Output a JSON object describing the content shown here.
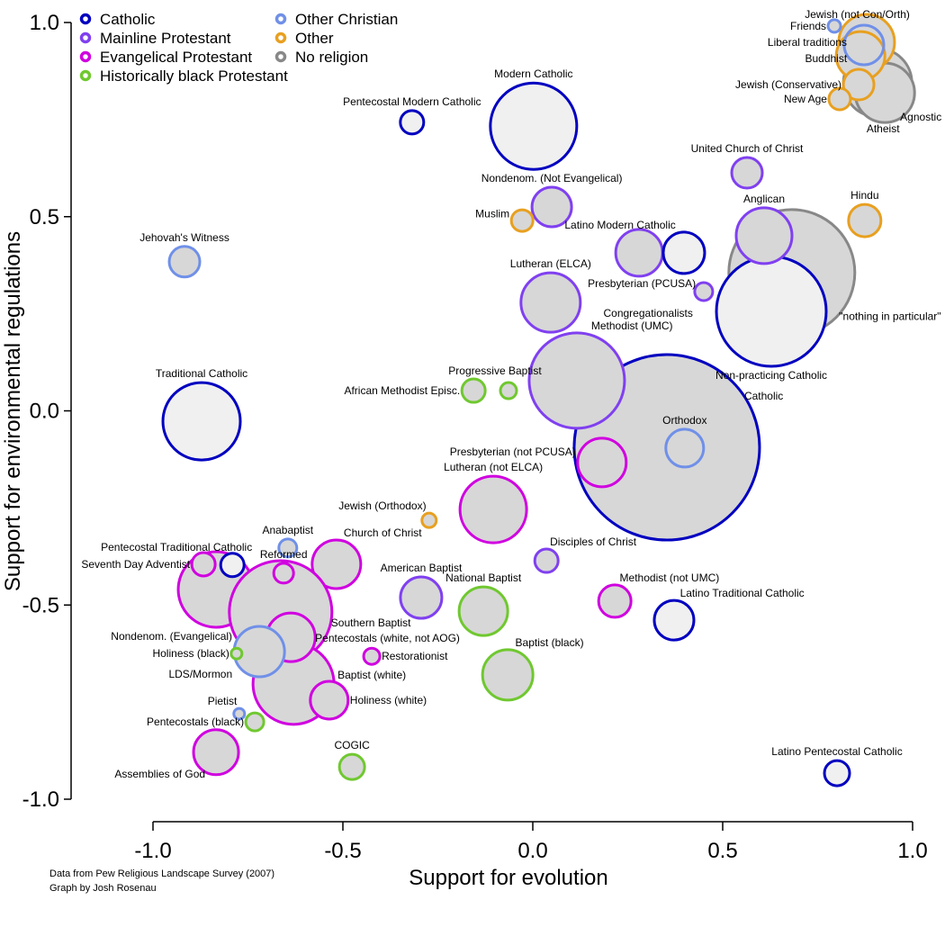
{
  "chart_data": {
    "type": "scatter",
    "subtype": "bubble",
    "title": "",
    "xlabel": "Support for evolution",
    "ylabel": "Support for environmental regulations",
    "xlim": [
      -1.0,
      1.0
    ],
    "ylim": [
      -1.0,
      1.0
    ],
    "x_ticks": [
      "-1.0",
      "-0.5",
      "0.0",
      "0.5",
      "1.0"
    ],
    "y_ticks": [
      "1.0",
      "0.5",
      "0.0",
      "-0.5",
      "-1.0"
    ],
    "grid": false,
    "legend_position": "top-left",
    "credits": [
      "Data from Pew Religious Landscape Survey (2007)",
      "Graph by Josh Rosenau"
    ],
    "size_note": "bubble size is relative group size (arbitrary units)",
    "categories": [
      {
        "key": "catholic",
        "name": "Catholic",
        "color": "#0000c0"
      },
      {
        "key": "mainline",
        "name": "Mainline Protestant",
        "color": "#8040f0"
      },
      {
        "key": "evangelical",
        "name": "Evangelical Protestant",
        "color": "#d000e0"
      },
      {
        "key": "black",
        "name": "Historically black Protestant",
        "color": "#70c830"
      },
      {
        "key": "otherchristian",
        "name": "Other Christian",
        "color": "#7090e8"
      },
      {
        "key": "other",
        "name": "Other",
        "color": "#e8a020"
      },
      {
        "key": "none",
        "name": "No religion",
        "color": "#888888"
      }
    ],
    "series": [
      {
        "name": "\"nothing in particular\"",
        "category": "none",
        "x": 0.682,
        "y": 0.356,
        "size": 70,
        "fill": "#d7d7d7",
        "label_pos": "right-below"
      },
      {
        "name": "Catholic",
        "category": "catholic",
        "x": 0.353,
        "y": -0.094,
        "size": 103,
        "fill": "#d7d7d7",
        "label_pos": "catholic"
      },
      {
        "name": "Methodist (UMC)",
        "category": "mainline",
        "x": 0.116,
        "y": 0.078,
        "size": 53,
        "fill": "#d7d7d7",
        "label_pos": "top-right"
      },
      {
        "name": "Orthodox",
        "category": "otherchristian",
        "x": 0.4,
        "y": -0.096,
        "size": 21,
        "fill": "#d7d7d7",
        "label_pos": "top"
      },
      {
        "name": "Presbyterian (not PCUSA)",
        "category": "evangelical",
        "x": 0.182,
        "y": -0.133,
        "size": 27,
        "fill": "#d7d7d7",
        "label_pos": "left-top"
      },
      {
        "name": "Modern Catholic",
        "category": "catholic",
        "x": 0.002,
        "y": 0.733,
        "size": 48,
        "fill": "#f0f0f0",
        "label_pos": "top"
      },
      {
        "name": "Pentecostal Modern Catholic",
        "category": "catholic",
        "x": -0.318,
        "y": 0.743,
        "size": 13,
        "fill": "#f0f0f0",
        "label_pos": "top"
      },
      {
        "name": "Traditional Catholic",
        "category": "catholic",
        "x": -0.872,
        "y": -0.027,
        "size": 43,
        "fill": "#f0f0f0",
        "label_pos": "top"
      },
      {
        "name": "Lutheran (ELCA)",
        "category": "mainline",
        "x": 0.047,
        "y": 0.279,
        "size": 33,
        "fill": "#d7d7d7",
        "label_pos": "top"
      },
      {
        "name": "Presbyterian (PCUSA)",
        "category": "mainline",
        "x": 0.28,
        "y": 0.407,
        "size": 26,
        "fill": "#d7d7d7",
        "label_pos": "pcusa"
      },
      {
        "name": "Latino Modern Catholic",
        "category": "catholic",
        "x": 0.398,
        "y": 0.407,
        "size": 23,
        "fill": "#f0f0f0",
        "label_pos": "top-left"
      },
      {
        "name": "Congregationalists",
        "category": "mainline",
        "x": 0.45,
        "y": 0.307,
        "size": 10,
        "fill": "#d7d7d7",
        "label_pos": "left-below"
      },
      {
        "name": "Non-practicing Catholic",
        "category": "catholic",
        "x": 0.628,
        "y": 0.256,
        "size": 61,
        "fill": "#f0f0f0",
        "label_pos": "bottom"
      },
      {
        "name": "Anglican",
        "category": "mainline",
        "x": 0.609,
        "y": 0.451,
        "size": 31,
        "fill": "#d7d7d7",
        "label_pos": "top"
      },
      {
        "name": "United Church of Christ",
        "category": "mainline",
        "x": 0.564,
        "y": 0.613,
        "size": 17,
        "fill": "#d7d7d7",
        "label_pos": "top"
      },
      {
        "name": "Nondenom. (Not Evangelical)",
        "category": "mainline",
        "x": 0.05,
        "y": 0.525,
        "size": 22,
        "fill": "#d7d7d7",
        "label_pos": "top"
      },
      {
        "name": "Muslim",
        "category": "other",
        "x": -0.028,
        "y": 0.49,
        "size": 12,
        "fill": "#d7d7d7",
        "label_pos": "left-top"
      },
      {
        "name": "Hindu",
        "category": "other",
        "x": 0.874,
        "y": 0.49,
        "size": 18,
        "fill": "#d7d7d7",
        "label_pos": "top"
      },
      {
        "name": "Jehovah's Witness",
        "category": "otherchristian",
        "x": -0.917,
        "y": 0.384,
        "size": 17,
        "fill": "#d7d7d7",
        "label_pos": "top"
      },
      {
        "name": "Progressive Baptist",
        "category": "black",
        "x": -0.064,
        "y": 0.052,
        "size": 9,
        "fill": "#d7d7d7",
        "label_pos": "prog"
      },
      {
        "name": "African Methodist Episc.",
        "category": "black",
        "x": -0.156,
        "y": 0.052,
        "size": 13,
        "fill": "#d7d7d7",
        "label_pos": "left"
      },
      {
        "name": "Lutheran (not ELCA)",
        "category": "evangelical",
        "x": -0.104,
        "y": -0.254,
        "size": 37,
        "fill": "#d7d7d7",
        "label_pos": "top"
      },
      {
        "name": "Jewish (Orthodox)",
        "category": "other",
        "x": -0.273,
        "y": -0.282,
        "size": 8,
        "fill": "#d7d7d7",
        "label_pos": "top-left"
      },
      {
        "name": "Disciples of Christ",
        "category": "mainline",
        "x": 0.036,
        "y": -0.386,
        "size": 13,
        "fill": "#d7d7d7",
        "label_pos": "top-right"
      },
      {
        "name": "Methodist (not UMC)",
        "category": "evangelical",
        "x": 0.216,
        "y": -0.49,
        "size": 18,
        "fill": "#d7d7d7",
        "label_pos": "top-right"
      },
      {
        "name": "Latino Traditional Catholic",
        "category": "catholic",
        "x": 0.372,
        "y": -0.539,
        "size": 22,
        "fill": "#f0f0f0",
        "label_pos": "top-right"
      },
      {
        "name": "Latino Pentecostal Catholic",
        "category": "catholic",
        "x": 0.801,
        "y": -0.933,
        "size": 14,
        "fill": "#f0f0f0",
        "label_pos": "top"
      },
      {
        "name": "National Baptist",
        "category": "black",
        "x": -0.13,
        "y": -0.516,
        "size": 27,
        "fill": "#d7d7d7",
        "label_pos": "top"
      },
      {
        "name": "Baptist (black)",
        "category": "black",
        "x": -0.066,
        "y": -0.68,
        "size": 28,
        "fill": "#d7d7d7",
        "label_pos": "top-right"
      },
      {
        "name": "American Baptist",
        "category": "mainline",
        "x": -0.294,
        "y": -0.481,
        "size": 23,
        "fill": "#d7d7d7",
        "label_pos": "top"
      },
      {
        "name": "Church of Christ",
        "category": "evangelical",
        "x": -0.517,
        "y": -0.395,
        "size": 27,
        "fill": "#d7d7d7",
        "label_pos": "top-right"
      },
      {
        "name": "Nondenom. (Evangelical)",
        "category": "evangelical",
        "x": -0.834,
        "y": -0.46,
        "size": 42,
        "fill": "#d7d7d7",
        "label_pos": "nondenom-ev"
      },
      {
        "name": "Southern Baptist",
        "category": "evangelical",
        "x": -0.664,
        "y": -0.518,
        "size": 57,
        "fill": "#d7d7d7",
        "label_pos": "sb"
      },
      {
        "name": "Baptist (white)",
        "category": "evangelical",
        "x": -0.63,
        "y": -0.703,
        "size": 45,
        "fill": "#d7d7d7",
        "label_pos": "bw"
      },
      {
        "name": "Seventh Day Adventist",
        "category": "evangelical",
        "x": -0.867,
        "y": -0.395,
        "size": 13,
        "fill": "#d7d7d7",
        "label_pos": "left"
      },
      {
        "name": "Pentecostal Traditional Catholic",
        "category": "catholic",
        "x": -0.791,
        "y": -0.397,
        "size": 13,
        "fill": "#f0f0f0",
        "label_pos": "ptc"
      },
      {
        "name": "Reformed",
        "category": "evangelical",
        "x": -0.656,
        "y": -0.418,
        "size": 11,
        "fill": "#d7d7d7",
        "label_pos": "top"
      },
      {
        "name": "Anabaptist",
        "category": "otherchristian",
        "x": -0.645,
        "y": -0.353,
        "size": 10,
        "fill": "#d7d7d7",
        "label_pos": "top"
      },
      {
        "name": "Pentecostals (white, not AOG)",
        "category": "evangelical",
        "x": -0.637,
        "y": -0.583,
        "size": 27,
        "fill": "#d7d7d7",
        "label_pos": "pw"
      },
      {
        "name": "LDS/Mormon",
        "category": "otherchristian",
        "x": -0.72,
        "y": -0.62,
        "size": 28,
        "fill": "#d7d7d7",
        "label_pos": "lds"
      },
      {
        "name": "Holiness (black)",
        "category": "black",
        "x": -0.78,
        "y": -0.625,
        "size": 6,
        "fill": "#d7d7d7",
        "label_pos": "left"
      },
      {
        "name": "Holiness (white)",
        "category": "evangelical",
        "x": -0.536,
        "y": -0.745,
        "size": 21,
        "fill": "#d7d7d7",
        "label_pos": "right"
      },
      {
        "name": "Restorationist",
        "category": "evangelical",
        "x": -0.424,
        "y": -0.632,
        "size": 9,
        "fill": "#d7d7d7",
        "label_pos": "right"
      },
      {
        "name": "Pietist",
        "category": "otherchristian",
        "x": -0.773,
        "y": -0.78,
        "size": 6,
        "fill": "#d7d7d7",
        "label_pos": "top-left"
      },
      {
        "name": "Pentecostals (black)",
        "category": "black",
        "x": -0.732,
        "y": -0.801,
        "size": 10,
        "fill": "#d7d7d7",
        "label_pos": "left"
      },
      {
        "name": "Assemblies of God",
        "category": "evangelical",
        "x": -0.834,
        "y": -0.879,
        "size": 25,
        "fill": "#d7d7d7",
        "label_pos": "bottom-left"
      },
      {
        "name": "COGIC",
        "category": "black",
        "x": -0.476,
        "y": -0.917,
        "size": 14,
        "fill": "#d7d7d7",
        "label_pos": "top"
      },
      {
        "name": "Agnostic",
        "category": "none",
        "x": 0.908,
        "y": 0.845,
        "size": 38,
        "fill": "#d7d7d7",
        "label_pos": "agn"
      },
      {
        "name": "Atheist",
        "category": "none",
        "x": 0.927,
        "y": 0.819,
        "size": 33,
        "fill": "#d7d7d7",
        "label_pos": "ath"
      },
      {
        "name": "Jewish (not Con/Orth)",
        "category": "other",
        "x": 0.879,
        "y": 0.949,
        "size": 31,
        "fill": "#d7d7d7",
        "label_pos": "jnco"
      },
      {
        "name": "Buddhist",
        "category": "other",
        "x": 0.863,
        "y": 0.914,
        "size": 27,
        "fill": "#d7d7d7",
        "label_pos": "bud"
      },
      {
        "name": "Liberal traditions",
        "category": "otherchristian",
        "x": 0.872,
        "y": 0.942,
        "size": 22,
        "fill": "#d7d7d7",
        "label_pos": "lib"
      },
      {
        "name": "Jewish (Conservative)",
        "category": "other",
        "x": 0.858,
        "y": 0.84,
        "size": 17,
        "fill": "#d7d7d7",
        "label_pos": "left"
      },
      {
        "name": "New Age",
        "category": "other",
        "x": 0.808,
        "y": 0.803,
        "size": 12,
        "fill": "#d7d7d7",
        "label_pos": "left"
      },
      {
        "name": "Friends",
        "category": "otherchristian",
        "x": 0.794,
        "y": 0.991,
        "size": 7,
        "fill": "#d7d7d7",
        "label_pos": "left"
      }
    ]
  }
}
